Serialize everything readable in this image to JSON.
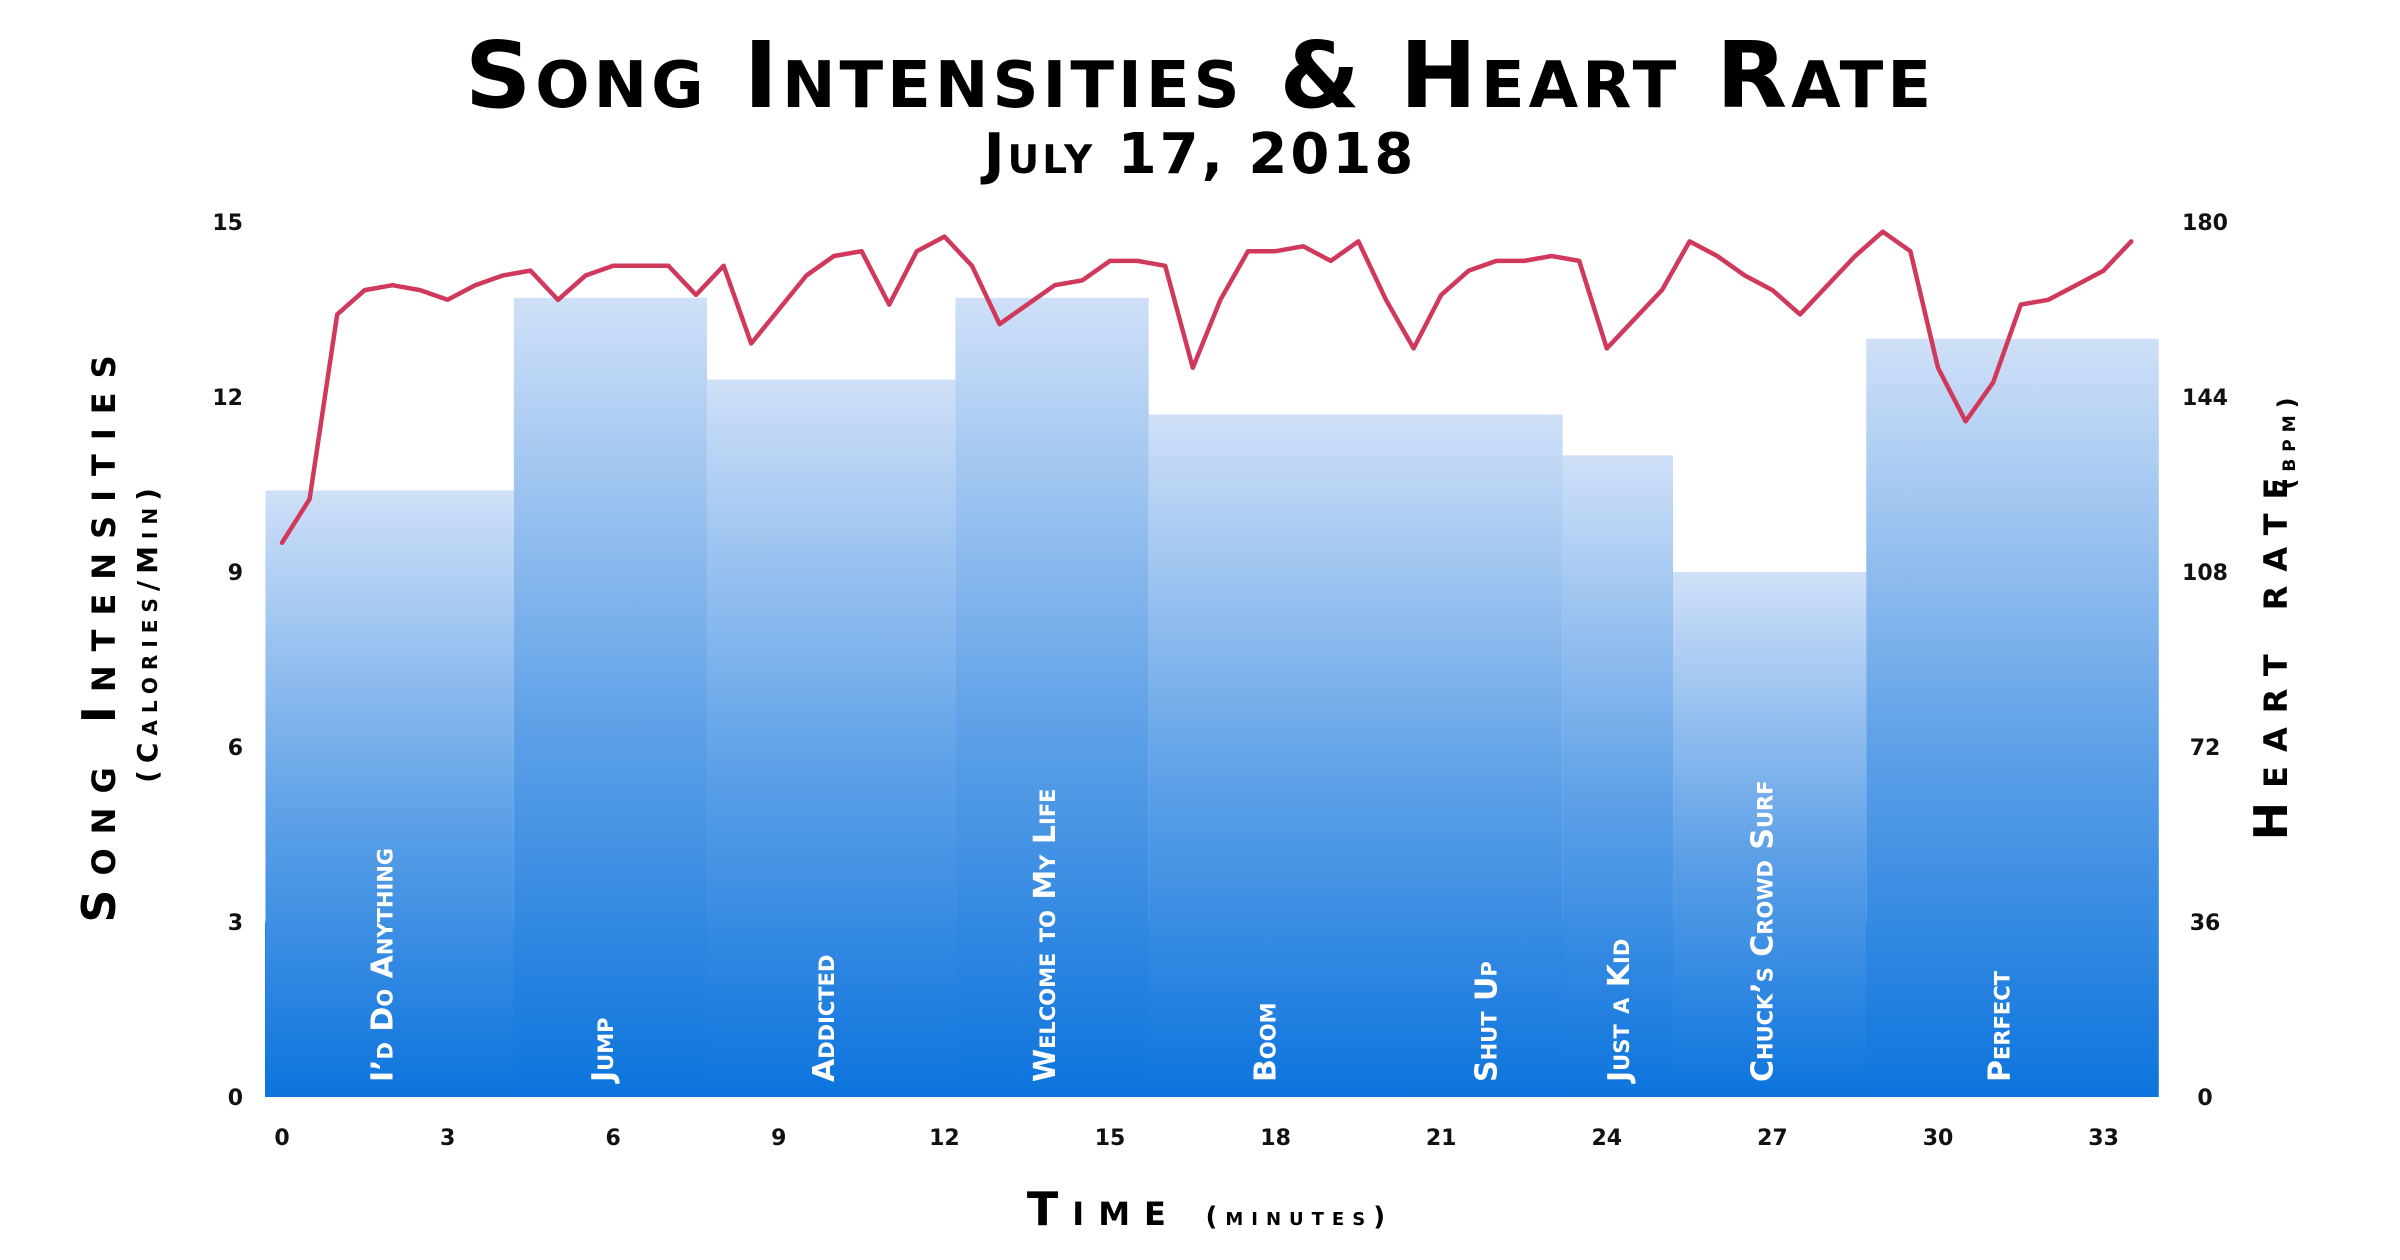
{
  "chart_data": {
    "type": "bar+line",
    "title": "Song Intensities & Heart Rate",
    "subtitle": "July 17, 2018",
    "xlabel_main": "Time",
    "xlabel_sub": "(minutes)",
    "ylabel_left_main": "Song Intensities",
    "ylabel_left_sub": "(Calories/Min)",
    "ylabel_right_main": "Heart rate",
    "ylabel_right_sub": "(bpm)",
    "xlim": [
      -0.3,
      34.1
    ],
    "ylim_left": [
      0,
      15
    ],
    "ylim_right": [
      0,
      180
    ],
    "x_ticks": [
      "0",
      "3",
      "6",
      "9",
      "12",
      "15",
      "18",
      "21",
      "24",
      "27",
      "30",
      "33"
    ],
    "y_left_ticks": [
      "0",
      "3",
      "6",
      "9",
      "12",
      "15"
    ],
    "y_right_ticks": [
      "0",
      "36",
      "72",
      "108",
      "144",
      "180"
    ],
    "songs": [
      {
        "name": "I’d Do Anything",
        "start": -0.3,
        "end": 4.2,
        "intensity": 10.4
      },
      {
        "name": "Jump",
        "start": 4.2,
        "end": 7.7,
        "intensity": 13.7
      },
      {
        "name": "Addicted",
        "start": 7.7,
        "end": 12.2,
        "intensity": 12.3
      },
      {
        "name": "Welcome to My Life",
        "start": 12.2,
        "end": 15.7,
        "intensity": 13.7
      },
      {
        "name": "Boom",
        "start": 15.7,
        "end": 23.2,
        "intensity": 11.7
      },
      {
        "name": "Shut Up",
        "start": 15.7,
        "end": 23.2,
        "intensity": null
      },
      {
        "name": "Just a Kid",
        "start": 23.2,
        "end": 25.2,
        "intensity": 11.0
      },
      {
        "name": "Chuck’s Crowd Surf",
        "start": 25.2,
        "end": 28.7,
        "intensity": 9.0
      },
      {
        "name": "Perfect",
        "start": 28.7,
        "end": 34.0,
        "intensity": 13.0
      }
    ],
    "heart_rate": {
      "x": [
        0,
        0.5,
        1,
        1.5,
        2,
        2.5,
        3,
        3.5,
        4,
        4.5,
        5,
        5.5,
        6,
        6.5,
        7,
        7.5,
        8,
        8.5,
        9,
        9.5,
        10,
        10.5,
        11,
        11.5,
        12,
        12.5,
        13,
        13.5,
        14,
        14.5,
        15,
        15.5,
        16,
        16.5,
        17,
        17.5,
        18,
        18.5,
        19,
        19.5,
        20,
        20.5,
        21,
        21.5,
        22,
        22.5,
        23,
        23.5,
        24,
        24.5,
        25,
        25.5,
        26,
        26.5,
        27,
        27.5,
        28,
        28.5,
        29,
        29.5,
        30,
        30.5,
        31,
        31.5,
        32,
        32.5,
        33,
        33.5
      ],
      "bpm": [
        114,
        123,
        161,
        166,
        167,
        166,
        164,
        167,
        169,
        170,
        164,
        169,
        171,
        171,
        171,
        165,
        171,
        155,
        162,
        169,
        173,
        174,
        163,
        174,
        177,
        171,
        159,
        163,
        167,
        168,
        172,
        172,
        171,
        150,
        164,
        174,
        174,
        175,
        172,
        176,
        164,
        154,
        165,
        170,
        172,
        172,
        173,
        172,
        154,
        160,
        166,
        176,
        173,
        169,
        166,
        161,
        167,
        173,
        178,
        174,
        150,
        139,
        147,
        163,
        164,
        167,
        170,
        176
      ]
    },
    "colors": {
      "bar_top": "#cfe0f7",
      "bar_bottom": "#0c74dd",
      "line": "#d0395b"
    }
  }
}
